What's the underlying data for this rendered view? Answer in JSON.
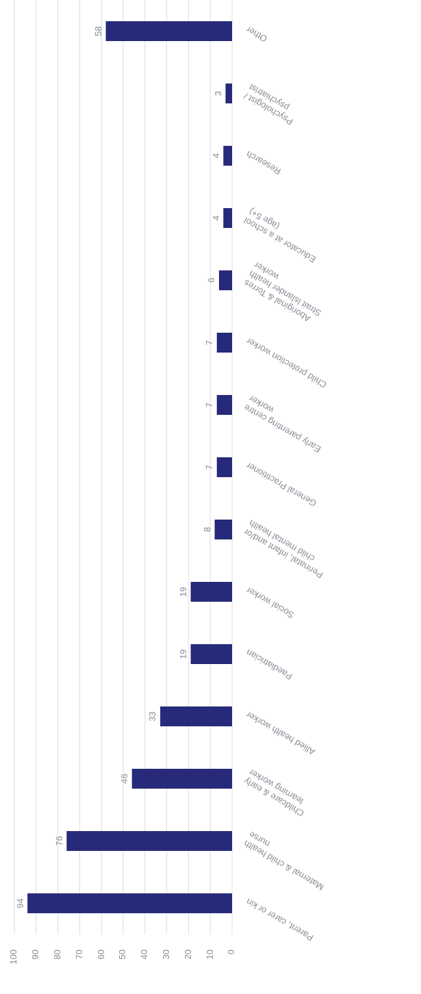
{
  "chart_data": {
    "type": "bar",
    "orientation": "horizontal",
    "categories": [
      "Other",
      "Psychologist / psychiatrist",
      "Research",
      "Educator at a school (age 5+)",
      "Aboriginal & Torres Strait Islander health worker",
      "Child protection worker",
      "Early parenting centre worker",
      "General Practitioner",
      "Perinatal, infant and/or child mental health",
      "Social worker",
      "Paediatrician",
      "Allied health worker",
      "Childcare & early learning worker",
      "Maternal & child health nurse",
      "Parent, carer or kin"
    ],
    "values": [
      58,
      3,
      4,
      4,
      6,
      7,
      7,
      7,
      8,
      19,
      19,
      33,
      46,
      76,
      94
    ],
    "color": "#272a7a",
    "xlim": [
      100,
      0
    ],
    "xticks": [
      100,
      90,
      80,
      70,
      60,
      50,
      40,
      30,
      20,
      10,
      0
    ],
    "grid": "x",
    "data_labels": true
  }
}
